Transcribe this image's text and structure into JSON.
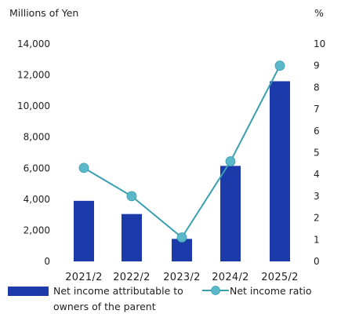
{
  "chart_data": {
    "type": "bar",
    "categories": [
      "2021/2",
      "2022/2",
      "2023/2",
      "2024/2",
      "2025/2"
    ],
    "series": [
      {
        "name": "Net income attributable to owners of the parent",
        "legend_lines": [
          "Net income attributable to",
          "owners of the parent"
        ],
        "type": "bar",
        "axis": "left",
        "color": "#1c3aa9",
        "values": [
          3900,
          3050,
          1450,
          6150,
          11600
        ]
      },
      {
        "name": "Net income ratio",
        "type": "line",
        "axis": "right",
        "color": "#3aa0b0",
        "marker_color": "#5ab8c8",
        "values": [
          4.3,
          3.0,
          1.1,
          4.6,
          9.0
        ]
      }
    ],
    "left_axis": {
      "unit_label": "Millions of Yen",
      "range": [
        0,
        14000
      ],
      "ticks": [
        0,
        2000,
        4000,
        6000,
        8000,
        10000,
        12000,
        14000
      ],
      "tick_labels": [
        "0",
        "2,000",
        "4,000",
        "6,000",
        "8,000",
        "10,000",
        "12,000",
        "14,000"
      ]
    },
    "right_axis": {
      "unit_label": "%",
      "range": [
        0,
        10
      ],
      "ticks": [
        0,
        1,
        2,
        3,
        4,
        5,
        6,
        7,
        8,
        9,
        10
      ],
      "tick_labels": [
        "0",
        "1",
        "2",
        "3",
        "4",
        "5",
        "6",
        "7",
        "8",
        "9",
        "10"
      ]
    },
    "grid": false,
    "legend_position": "bottom"
  }
}
